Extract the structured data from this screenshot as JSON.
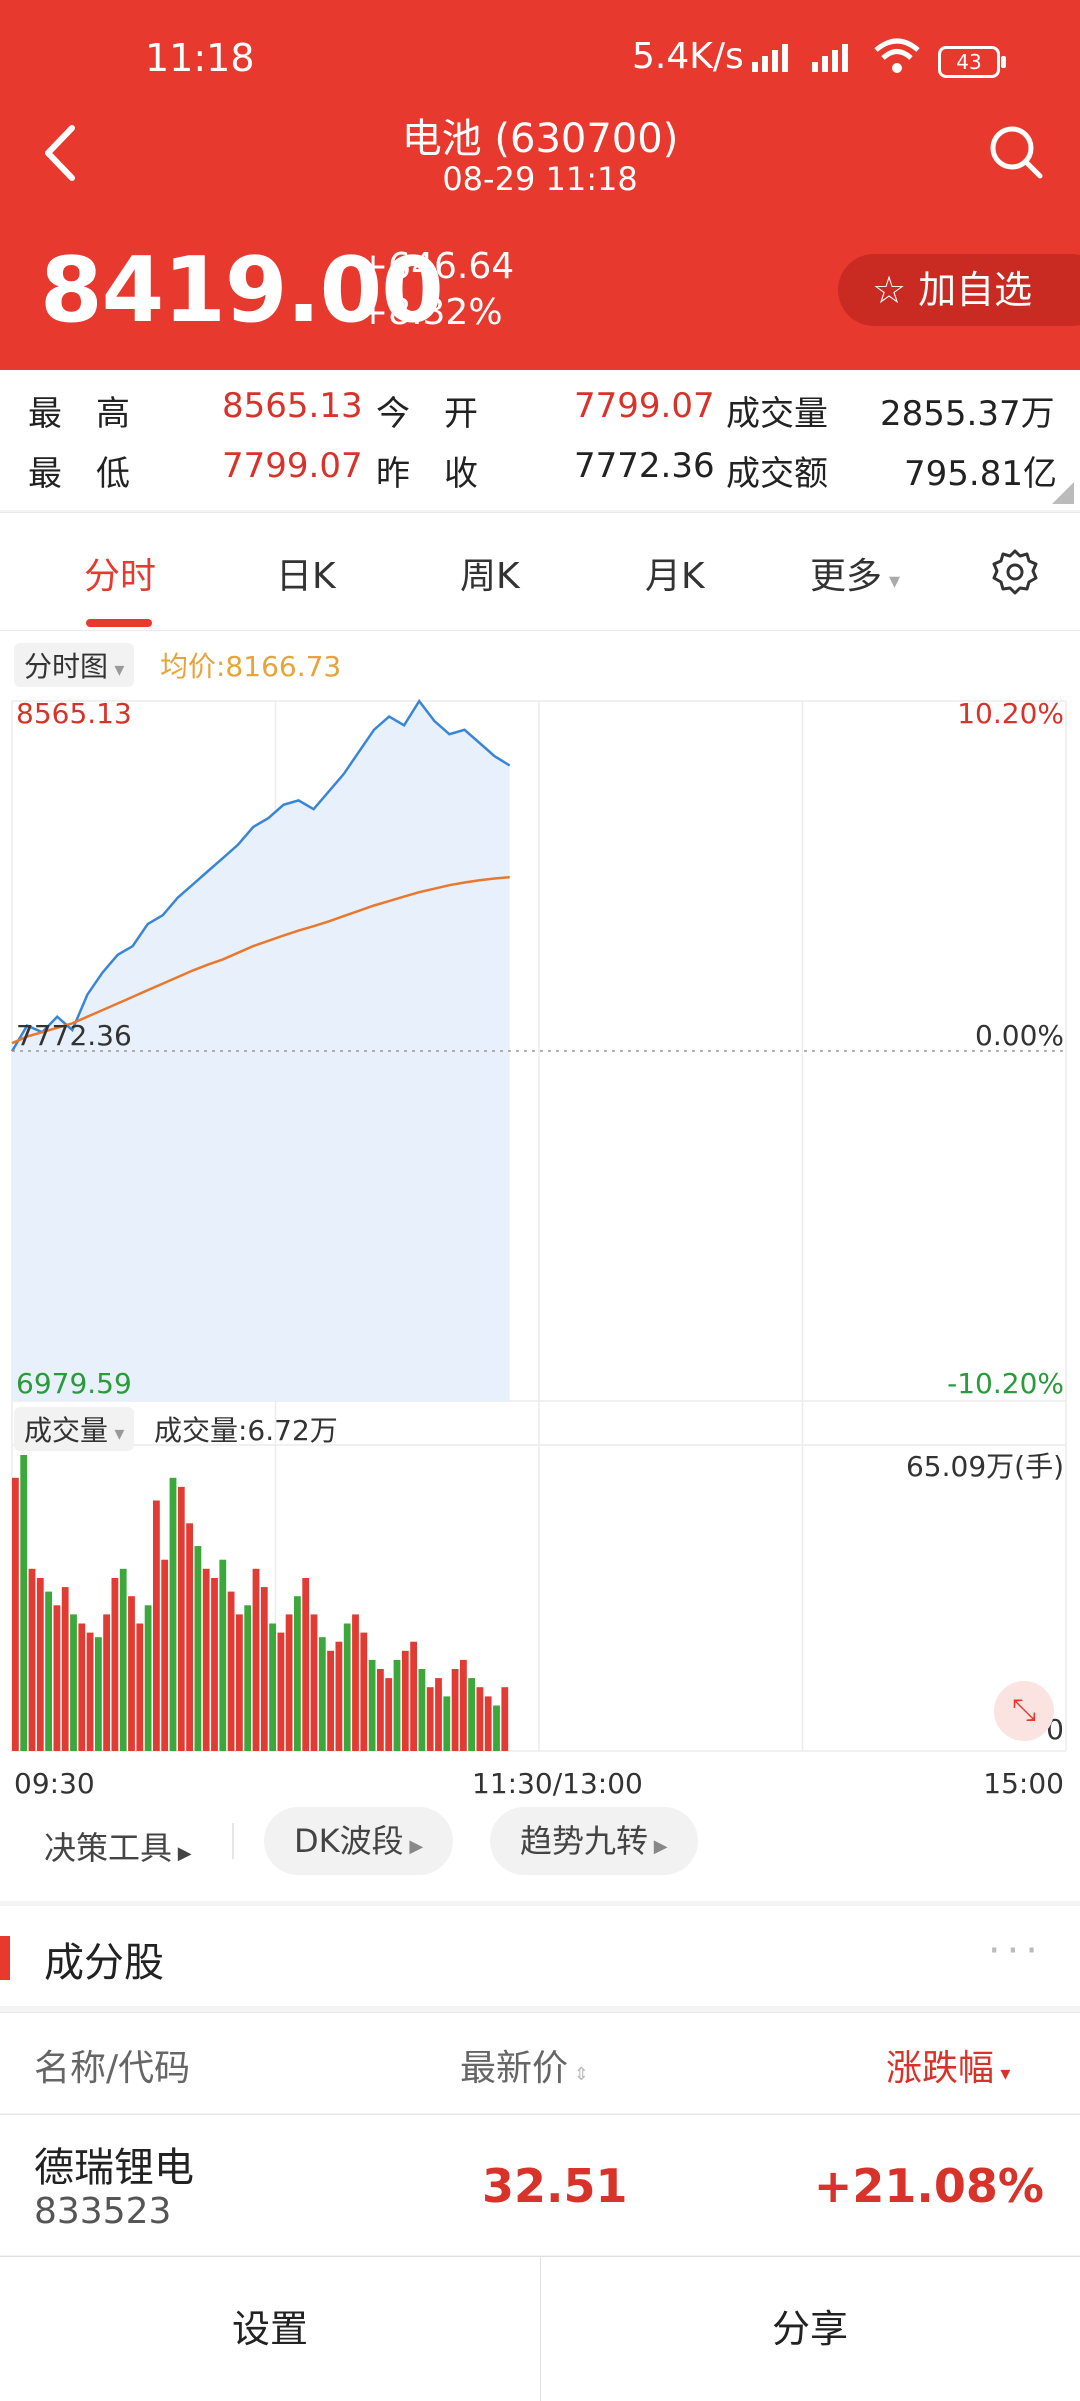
{
  "status_bar": {
    "time": "11:18",
    "speed": "5.4K/s",
    "battery": "43"
  },
  "nav": {
    "title": "电池 (630700)",
    "subtitle": "08-29 11:18"
  },
  "quote": {
    "price": "8419.00",
    "change": "+646.64",
    "change_pct": "+8.32%",
    "favorite_label": "加自选"
  },
  "stats": {
    "high_label": "最　高",
    "high": "8565.13",
    "open_label": "今　开",
    "open": "7799.07",
    "volume_label": "成交量",
    "volume": "2855.37万",
    "low_label": "最　低",
    "low": "7799.07",
    "prev_close_label": "昨　收",
    "prev_close": "7772.36",
    "turnover_label": "成交额",
    "turnover": "795.81亿"
  },
  "tabs": [
    {
      "label": "分时",
      "active": true
    },
    {
      "label": "日K"
    },
    {
      "label": "周K"
    },
    {
      "label": "月K"
    },
    {
      "label": "更多"
    }
  ],
  "chart": {
    "selector": "分时图",
    "avg_label": "均价:8166.73",
    "y_top": "8565.13",
    "y_mid": "7772.36",
    "y_bottom": "6979.59",
    "pct_top": "10.20%",
    "pct_mid": "0.00%",
    "pct_bottom": "-10.20%",
    "vol_selector": "成交量",
    "vol_label": "成交量:6.72万",
    "vol_max": "65.09万(手)",
    "vol_zero": "0",
    "x_start": "09:30",
    "x_mid": "11:30/13:00",
    "x_end": "15:00",
    "colors": {
      "price_line": "#3a86d6",
      "avg_line": "#e8782c",
      "up": "#e23b33",
      "down": "#3aa83a"
    }
  },
  "chart_data": {
    "type": "line",
    "x_range": [
      "09:30",
      "15:00"
    ],
    "ylim": [
      6979.59,
      8565.13
    ],
    "prev_close": 7772.36,
    "series": [
      {
        "name": "",
        "values": [
          7772,
          7830,
          7815,
          7850,
          7820,
          7900,
          7950,
          7990,
          8010,
          8060,
          8080,
          8120,
          8150,
          8180,
          8210,
          8240,
          8280,
          8300,
          8330,
          8340,
          8320,
          8360,
          8400,
          8450,
          8500,
          8530,
          8510,
          8565,
          8520,
          8490,
          8500,
          8470,
          8440,
          8419
        ]
      },
      {
        "name": "",
        "values": [
          7790,
          7805,
          7815,
          7825,
          7835,
          7850,
          7865,
          7880,
          7895,
          7910,
          7925,
          7940,
          7955,
          7968,
          7980,
          7995,
          8010,
          8022,
          8034,
          8045,
          8055,
          8066,
          8078,
          8090,
          8102,
          8112,
          8122,
          8132,
          8140,
          8148,
          8154,
          8159,
          8163,
          8166
        ]
      }
    ],
    "volume_series": [
      {
        "name": "成交量",
        "values": [
          60,
          65,
          40,
          38,
          35,
          32,
          36,
          30,
          28,
          26,
          25,
          30,
          38,
          40,
          34,
          28,
          32,
          55,
          42,
          60,
          58,
          50,
          45,
          40,
          38,
          42,
          35,
          30,
          32,
          40,
          36,
          28,
          26,
          30,
          34,
          38,
          30,
          25,
          22,
          24,
          28,
          30,
          26,
          20,
          18,
          16,
          20,
          22,
          24,
          18,
          14,
          16,
          12,
          18,
          20,
          16,
          14,
          12,
          10,
          14
        ]
      }
    ]
  },
  "tools": [
    "决策工具",
    "DK波段",
    "趋势九转"
  ],
  "constituents": {
    "title": "成分股",
    "more": "···",
    "col_name": "名称/代码",
    "col_price": "最新价",
    "col_change": "涨跌幅",
    "rows": [
      {
        "name": "德瑞锂电",
        "code": "833523",
        "price": "32.51",
        "change": "+21.08%"
      }
    ]
  },
  "bottom_bar": {
    "settings": "设置",
    "share": "分享"
  }
}
